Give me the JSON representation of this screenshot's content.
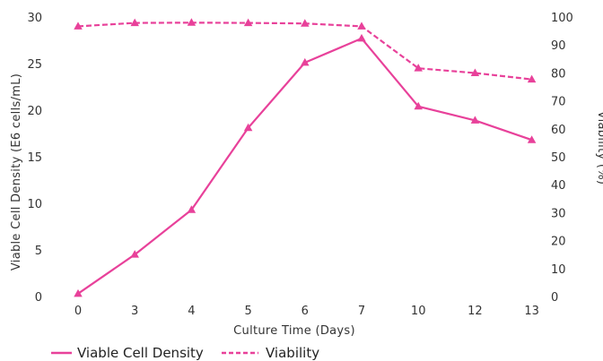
{
  "chart_data": {
    "type": "line",
    "categories": [
      "0",
      "3",
      "4",
      "5",
      "6",
      "7",
      "10",
      "12",
      "13"
    ],
    "xlabel": "Culture Time (Days)",
    "ylabel_left": "Viable Cell Density (E6 cells/mL)",
    "ylabel_right": "Viability (%)",
    "ylim_left": [
      0,
      30
    ],
    "ylim_right": [
      0,
      100
    ],
    "yticks_left": [
      "0",
      "5",
      "10",
      "15",
      "20",
      "25",
      "30"
    ],
    "yticks_right": [
      "0",
      "10",
      "20",
      "30",
      "40",
      "50",
      "60",
      "70",
      "80",
      "90",
      "100"
    ],
    "grid": false,
    "legend_position": "bottom-left",
    "color": "#e8419a",
    "series": [
      {
        "name": "Viable Cell Density",
        "axis": "left",
        "style": "solid",
        "values": [
          0.4,
          4.6,
          9.4,
          18.2,
          25.2,
          27.8,
          20.5,
          19.0,
          16.9
        ]
      },
      {
        "name": "Viability",
        "axis": "right",
        "style": "dashed",
        "values": [
          97.0,
          98.2,
          98.3,
          98.2,
          98.0,
          97.0,
          82.0,
          80.3,
          78.0
        ]
      }
    ]
  }
}
